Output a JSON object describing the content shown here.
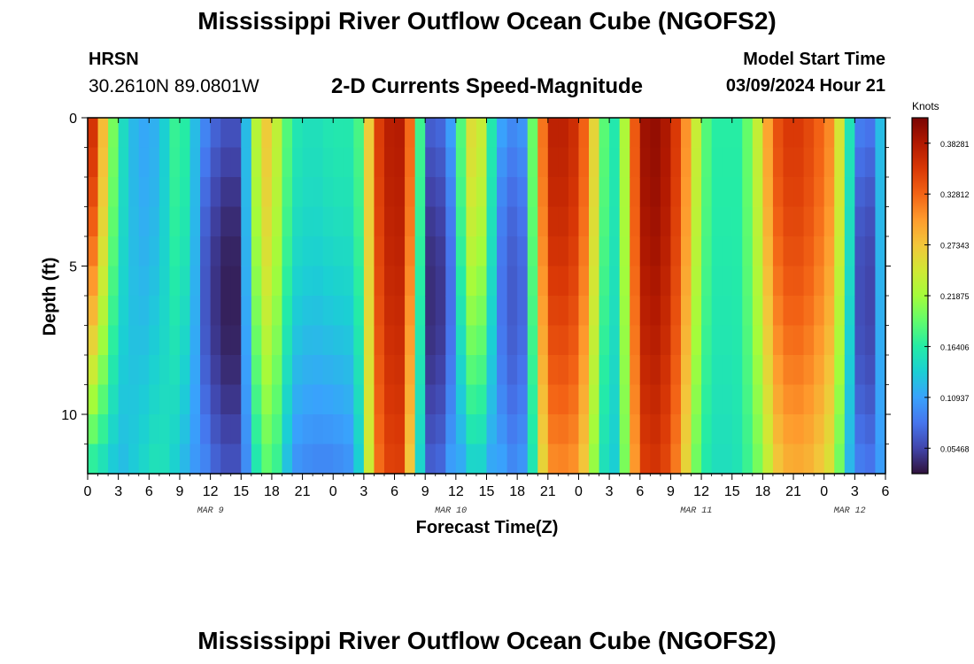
{
  "page": {
    "title": "Mississippi River Outflow Ocean Cube (NGOFS2)",
    "title_repeat": "Mississippi River Outflow Ocean Cube (NGOFS2)"
  },
  "station": {
    "name": "HRSN",
    "coords": "30.2610N  89.0801W"
  },
  "model": {
    "label": "Model Start Time",
    "start": "03/09/2024 Hour 21"
  },
  "chart_data": {
    "type": "heatmap",
    "title": "2-D Currents Speed-Magnitude",
    "xlabel": "Forecast Time(Z)",
    "ylabel": "Depth (ft)",
    "x_start_hour": 0,
    "x_end_hour": 78,
    "x_ticks": [
      {
        "h": 0,
        "label": "0"
      },
      {
        "h": 3,
        "label": "3"
      },
      {
        "h": 6,
        "label": "6"
      },
      {
        "h": 9,
        "label": "9"
      },
      {
        "h": 12,
        "label": "12"
      },
      {
        "h": 15,
        "label": "15"
      },
      {
        "h": 18,
        "label": "18"
      },
      {
        "h": 21,
        "label": "21"
      },
      {
        "h": 24,
        "label": "0"
      },
      {
        "h": 27,
        "label": "3"
      },
      {
        "h": 30,
        "label": "6"
      },
      {
        "h": 33,
        "label": "9"
      },
      {
        "h": 36,
        "label": "12"
      },
      {
        "h": 39,
        "label": "15"
      },
      {
        "h": 42,
        "label": "18"
      },
      {
        "h": 45,
        "label": "21"
      },
      {
        "h": 48,
        "label": "0"
      },
      {
        "h": 51,
        "label": "3"
      },
      {
        "h": 54,
        "label": "6"
      },
      {
        "h": 57,
        "label": "9"
      },
      {
        "h": 60,
        "label": "12"
      },
      {
        "h": 63,
        "label": "15"
      },
      {
        "h": 66,
        "label": "18"
      },
      {
        "h": 69,
        "label": "21"
      },
      {
        "h": 72,
        "label": "0"
      },
      {
        "h": 75,
        "label": "3"
      },
      {
        "h": 78,
        "label": "6"
      }
    ],
    "date_labels": [
      {
        "h": 12,
        "label": "MAR 9"
      },
      {
        "h": 35.5,
        "label": "MAR 10"
      },
      {
        "h": 59.5,
        "label": "MAR 11"
      },
      {
        "h": 74.5,
        "label": "MAR 12"
      }
    ],
    "ylim": [
      0,
      12
    ],
    "y_ticks": [
      {
        "v": 0,
        "label": "0"
      },
      {
        "v": 5,
        "label": "5"
      },
      {
        "v": 10,
        "label": "10"
      }
    ],
    "depth_levels": 12,
    "hour_columns": 78,
    "colorbar": {
      "unit": "Knots",
      "min": 0.0273,
      "max": 0.4102,
      "ticks": [
        "0.38281",
        "0.32812",
        "0.27343",
        "0.21875",
        "0.16406",
        "0.10937",
        "0.05468"
      ],
      "tick_values": [
        0.38281,
        0.32812,
        0.27343,
        0.21875,
        0.16406,
        0.10937,
        0.05468
      ],
      "colors": [
        "#30123b",
        "#4145ab",
        "#4675ed",
        "#39a2fc",
        "#1bcfd4",
        "#24eca6",
        "#61fc6c",
        "#a4fc3b",
        "#d1e834",
        "#f3c63a",
        "#fe9b2d",
        "#f36315",
        "#d93806",
        "#b11901",
        "#7a0403"
      ]
    },
    "profile_hours": [
      0,
      1,
      2,
      3,
      5,
      7,
      9,
      10,
      12,
      13,
      14,
      15,
      16,
      17,
      18,
      19,
      20,
      22,
      24,
      26,
      27,
      28,
      30,
      31,
      32,
      33,
      35,
      36,
      37,
      38,
      39,
      40,
      42,
      43,
      44,
      45,
      46,
      48,
      49,
      51,
      52,
      53,
      54,
      56,
      58,
      59,
      60,
      61,
      62,
      63,
      64,
      66,
      67,
      68,
      69,
      71,
      73,
      74,
      75,
      76,
      77,
      78
    ],
    "profile_surface": [
      0.4,
      0.32,
      0.24,
      0.16,
      0.11,
      0.12,
      0.19,
      0.14,
      0.08,
      0.07,
      0.06,
      0.07,
      0.18,
      0.28,
      0.26,
      0.21,
      0.16,
      0.15,
      0.16,
      0.16,
      0.2,
      0.34,
      0.39,
      0.37,
      0.28,
      0.07,
      0.08,
      0.14,
      0.23,
      0.28,
      0.2,
      0.12,
      0.09,
      0.12,
      0.27,
      0.37,
      0.38,
      0.36,
      0.3,
      0.15,
      0.17,
      0.28,
      0.39,
      0.4,
      0.34,
      0.27,
      0.21,
      0.16,
      0.17,
      0.16,
      0.17,
      0.26,
      0.33,
      0.35,
      0.36,
      0.34,
      0.3,
      0.2,
      0.11,
      0.07,
      0.1,
      0.15
    ],
    "profile_bottom": [
      0.16,
      0.15,
      0.14,
      0.12,
      0.14,
      0.16,
      0.13,
      0.11,
      0.08,
      0.06,
      0.05,
      0.06,
      0.13,
      0.18,
      0.19,
      0.15,
      0.1,
      0.09,
      0.09,
      0.1,
      0.17,
      0.31,
      0.36,
      0.34,
      0.2,
      0.08,
      0.09,
      0.1,
      0.12,
      0.15,
      0.12,
      0.1,
      0.08,
      0.09,
      0.22,
      0.3,
      0.31,
      0.3,
      0.24,
      0.12,
      0.15,
      0.25,
      0.35,
      0.36,
      0.3,
      0.22,
      0.17,
      0.15,
      0.15,
      0.15,
      0.16,
      0.21,
      0.26,
      0.28,
      0.29,
      0.28,
      0.24,
      0.15,
      0.09,
      0.06,
      0.08,
      0.13
    ]
  }
}
